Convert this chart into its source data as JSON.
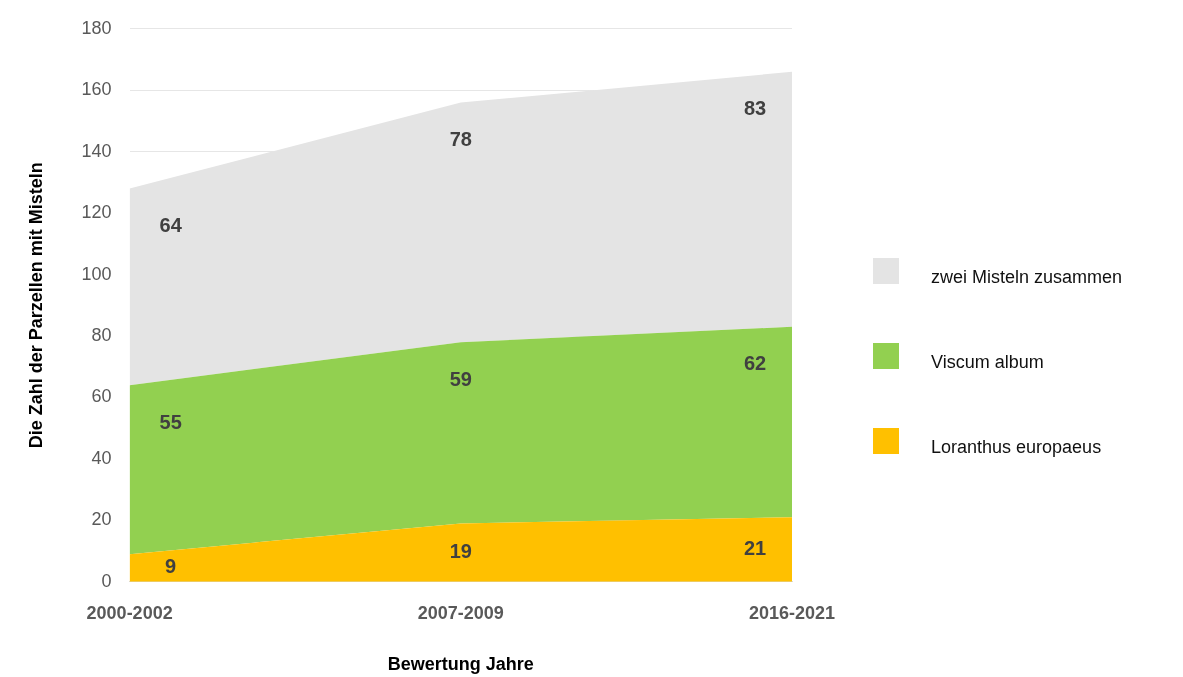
{
  "chart_data": {
    "type": "area",
    "stacked": true,
    "xlabel": "Bewertung Jahre",
    "ylabel": "Die Zahl der Parzellen mit Misteln",
    "categories": [
      "2000-2002",
      "2007-2009",
      "2016-2021"
    ],
    "series": [
      {
        "name": "Loranthus europaeus",
        "color": "#ffc000",
        "values": [
          9,
          19,
          21
        ]
      },
      {
        "name": "Viscum album",
        "color": "#92d050",
        "values": [
          55,
          59,
          62
        ]
      },
      {
        "name": "zwei Misteln zusammen",
        "color": "#e4e4e4",
        "values": [
          64,
          78,
          83
        ]
      }
    ],
    "ylim": [
      0,
      180
    ],
    "yticks": [
      0,
      20,
      40,
      60,
      80,
      100,
      120,
      140,
      160,
      180
    ],
    "grid": "y",
    "legend": "right",
    "data_labels": true
  }
}
